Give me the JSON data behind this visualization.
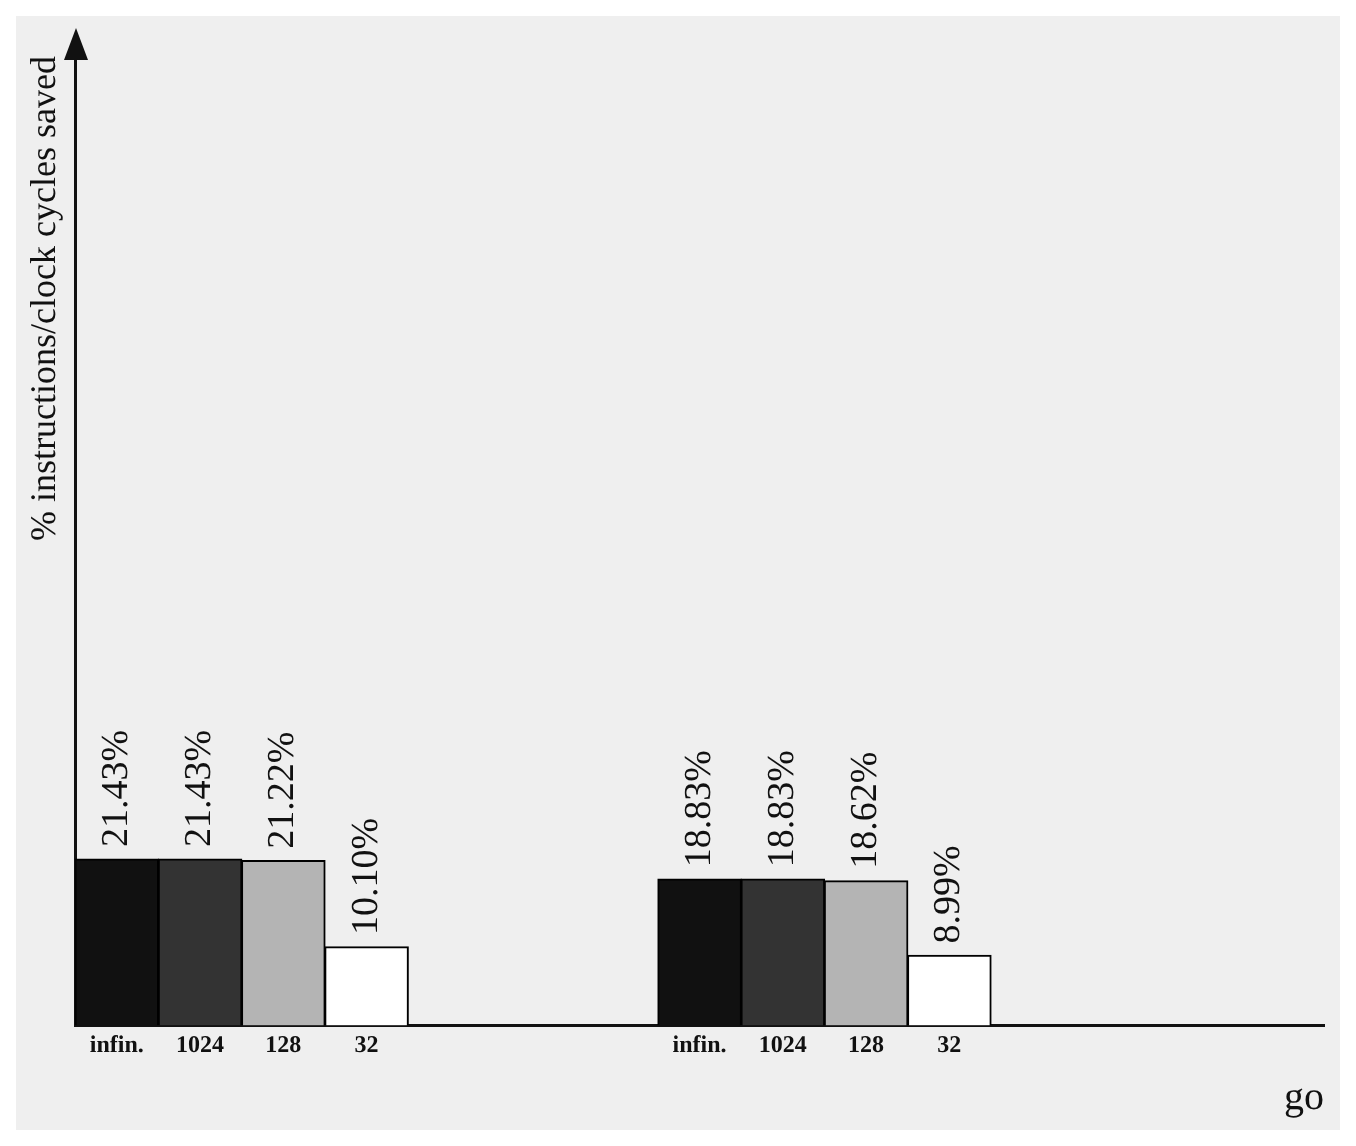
{
  "chart_data": {
    "type": "bar",
    "ylabel": "% instructions/clock cycles saved",
    "xlabel": "go",
    "categories": [
      "infin.",
      "1024",
      "128",
      "32",
      null,
      null,
      null,
      "infin.",
      "1024",
      "128",
      "32",
      null,
      null,
      null,
      null
    ],
    "values": [
      21.43,
      21.43,
      21.22,
      10.1,
      null,
      null,
      null,
      18.83,
      18.83,
      18.62,
      8.99,
      null,
      null,
      null,
      null
    ],
    "value_labels": [
      "21.43%",
      "21.43%",
      "21.22%",
      "10.10%",
      null,
      null,
      null,
      "18.83%",
      "18.83%",
      "18.62%",
      "8.99%",
      null,
      null,
      null,
      null
    ],
    "colors": [
      "#111111",
      "#333333",
      "#b4b4b4",
      "#ffffff",
      null,
      null,
      null,
      "#111111",
      "#333333",
      "#b4b4b4",
      "#ffffff",
      null,
      null,
      null,
      null
    ],
    "ylim": [
      0,
      125
    ],
    "tick_labels": "x",
    "grid": false,
    "legend": false
  }
}
